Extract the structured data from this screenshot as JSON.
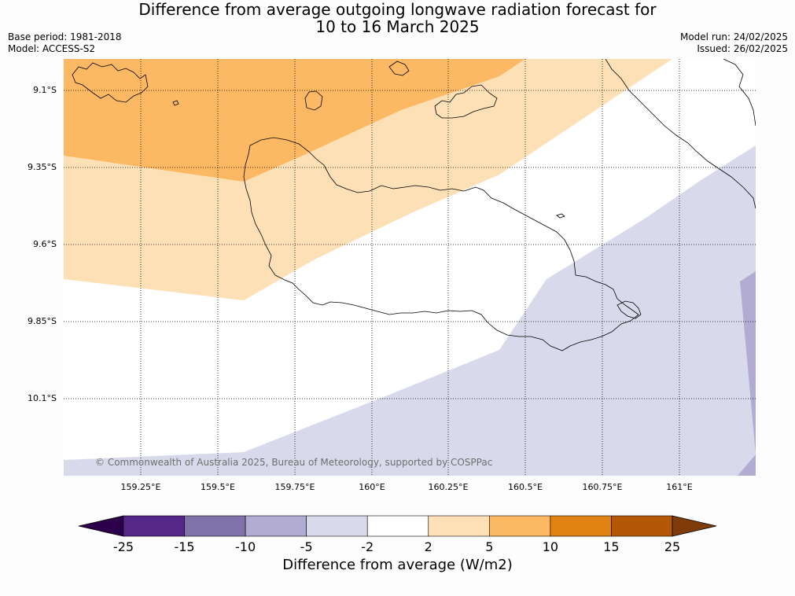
{
  "title": {
    "line1": "Difference from average outgoing longwave radiation forecast for",
    "line2": "10 to 16 March 2025"
  },
  "meta": {
    "base_period": "Base period: 1981-2018",
    "model": "Model: ACCESS-S2",
    "model_run": "Model run: 24/02/2025",
    "issued": "Issued: 26/02/2025"
  },
  "map": {
    "lat_labels": [
      "9.1°S",
      "9.35°S",
      "9.6°S",
      "9.85°S",
      "10.1°S"
    ],
    "lon_labels": [
      "159.25°E",
      "159.5°E",
      "159.75°E",
      "160°E",
      "160.25°E",
      "160.5°E",
      "160.75°E",
      "161°E"
    ],
    "copyright": "© Commonwealth of Australia 2025, Bureau of Meteorology, supported by COSPPac",
    "region_classes": [
      "5 to 10",
      "2 to 5",
      "-2 to 2",
      "-5 to -2",
      "-10 to -5"
    ]
  },
  "colorbar": {
    "ticks": [
      "-25",
      "-15",
      "-10",
      "-5",
      "-2",
      "2",
      "5",
      "10",
      "15",
      "25"
    ],
    "colors": [
      "#2d004b",
      "#542788",
      "#8073ac",
      "#b2abd2",
      "#d8daeb",
      "#ffffff",
      "#fee0b6",
      "#fdb863",
      "#e08214",
      "#b35806",
      "#7f3b08"
    ],
    "label": "Difference from average (W/m2)"
  }
}
